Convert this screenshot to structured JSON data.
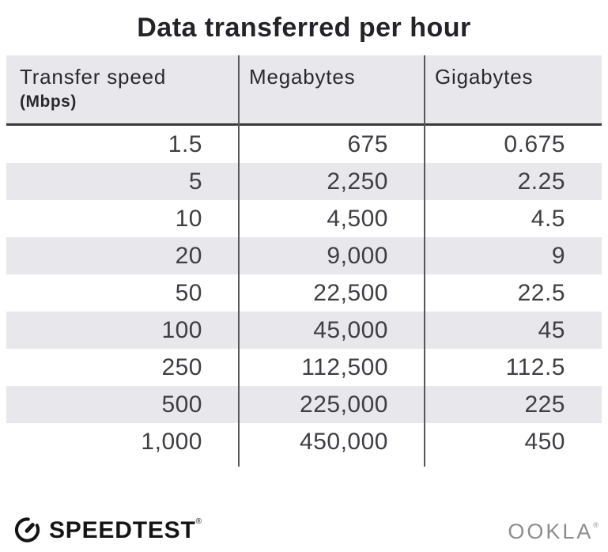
{
  "title": "Data transferred per hour",
  "header": {
    "col1_label": "Transfer speed",
    "col1_sublabel": "(Mbps)",
    "col2_label": "Megabytes",
    "col3_label": "Gigabytes"
  },
  "chart_data": {
    "type": "table",
    "title": "Data transferred per hour",
    "columns": [
      "Transfer speed (Mbps)",
      "Megabytes",
      "Gigabytes"
    ],
    "rows": [
      [
        "1.5",
        "675",
        "0.675"
      ],
      [
        "5",
        "2,250",
        "2.25"
      ],
      [
        "10",
        "4,500",
        "4.5"
      ],
      [
        "20",
        "9,000",
        "9"
      ],
      [
        "50",
        "22,500",
        "22.5"
      ],
      [
        "100",
        "45,000",
        "45"
      ],
      [
        "250",
        "112,500",
        "112.5"
      ],
      [
        "500",
        "225,000",
        "225"
      ],
      [
        "1,000",
        "450,000",
        "450"
      ]
    ]
  },
  "footer": {
    "speedtest_label": "SPEEDTEST",
    "speedtest_trademark": "®",
    "ookla_label": "OOKLA",
    "ookla_trademark": "®"
  },
  "colors": {
    "stripe": "#e8e8ec",
    "divider": "#58585a",
    "header_border": "#3a3a3d",
    "title_text": "#242428",
    "number_text": "#3f3f43",
    "ookla_gray": "#8d8d8d",
    "logo_black": "#141414"
  }
}
